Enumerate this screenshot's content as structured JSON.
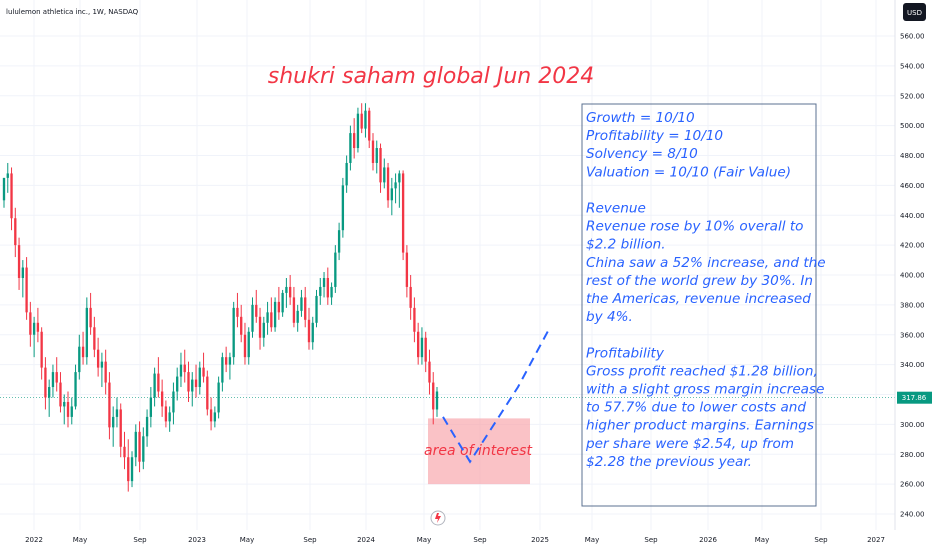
{
  "header": {
    "symbol_line": "lululemon athletica inc., 1W, NASDAQ",
    "currency": "USD"
  },
  "annotations": {
    "title": "shukri saham global Jun 2024",
    "area_label": "area of interest",
    "notes": [
      "Growth = 10/10",
      "Profitability = 10/10",
      "Solvency = 8/10",
      "Valuation = 10/10 (Fair Value)",
      "",
      "Revenue",
      "Revenue rose by 10% overall to",
      "$2.2 billion.",
      "China saw a 52% increase, and the",
      "rest of the world grew by 30%. In",
      "the Americas, revenue increased",
      "by 4%.",
      "",
      "Profitability",
      "Gross profit reached $1.28 billion,",
      "with a slight gross margin increase",
      "to 57.7% due to lower costs and",
      "higher product margins. Earnings",
      "per share were $2.54, up from",
      "$2.28 the previous year."
    ]
  },
  "colors": {
    "up": "#089981",
    "down": "#f23645",
    "note_text": "#2962ff",
    "annotation_red": "#f23645",
    "area_fill": "#f7a1a8",
    "current_price_tag": "#089981",
    "currency_tag": "#131722"
  },
  "chart_data": {
    "type": "candlestick",
    "interval": "1W",
    "y_axis": {
      "ticks": [
        "560.00",
        "540.00",
        "520.00",
        "500.00",
        "480.00",
        "460.00",
        "440.00",
        "420.00",
        "400.00",
        "380.00",
        "360.00",
        "340.00",
        "320.00",
        "300.00",
        "280.00",
        "260.00",
        "240.00"
      ],
      "range": [
        232,
        572
      ]
    },
    "x_axis": {
      "ticks": [
        "2022",
        "May",
        "Sep",
        "2023",
        "May",
        "Sep",
        "2024",
        "May",
        "Sep",
        "2025",
        "May",
        "Sep",
        "2026",
        "May",
        "Sep",
        "2027"
      ]
    },
    "current_price": "317.86",
    "current_price_value": 317.86,
    "area_of_interest": {
      "price_low": 260,
      "price_high": 304
    },
    "projection_path": [
      305,
      275,
      325,
      365
    ],
    "candles": [
      [
        450,
        465,
        445,
        465
      ],
      [
        465,
        475,
        455,
        468
      ],
      [
        468,
        472,
        430,
        438
      ],
      [
        438,
        445,
        412,
        420
      ],
      [
        420,
        425,
        390,
        398
      ],
      [
        398,
        410,
        385,
        405
      ],
      [
        405,
        412,
        370,
        375
      ],
      [
        375,
        382,
        352,
        360
      ],
      [
        360,
        372,
        345,
        368
      ],
      [
        368,
        378,
        355,
        362
      ],
      [
        362,
        365,
        330,
        338
      ],
      [
        338,
        345,
        310,
        318
      ],
      [
        318,
        330,
        305,
        325
      ],
      [
        325,
        340,
        318,
        335
      ],
      [
        335,
        345,
        322,
        328
      ],
      [
        328,
        335,
        308,
        312
      ],
      [
        312,
        320,
        300,
        315
      ],
      [
        315,
        322,
        298,
        305
      ],
      [
        305,
        318,
        300,
        312
      ],
      [
        312,
        340,
        310,
        335
      ],
      [
        335,
        360,
        330,
        352
      ],
      [
        352,
        362,
        340,
        345
      ],
      [
        345,
        385,
        340,
        378
      ],
      [
        378,
        388,
        360,
        365
      ],
      [
        365,
        372,
        345,
        350
      ],
      [
        350,
        358,
        332,
        338
      ],
      [
        338,
        348,
        325,
        342
      ],
      [
        342,
        350,
        320,
        328
      ],
      [
        328,
        335,
        290,
        298
      ],
      [
        298,
        312,
        285,
        305
      ],
      [
        305,
        318,
        298,
        310
      ],
      [
        310,
        314,
        278,
        285
      ],
      [
        285,
        295,
        270,
        278
      ],
      [
        278,
        290,
        255,
        262
      ],
      [
        262,
        282,
        258,
        278
      ],
      [
        278,
        300,
        272,
        295
      ],
      [
        295,
        302,
        268,
        275
      ],
      [
        275,
        298,
        270,
        292
      ],
      [
        292,
        310,
        285,
        305
      ],
      [
        305,
        325,
        298,
        318
      ],
      [
        318,
        338,
        312,
        334
      ],
      [
        334,
        345,
        318,
        322
      ],
      [
        322,
        330,
        305,
        312
      ],
      [
        312,
        316,
        298,
        302
      ],
      [
        302,
        312,
        295,
        308
      ],
      [
        308,
        328,
        300,
        322
      ],
      [
        322,
        338,
        316,
        332
      ],
      [
        332,
        348,
        325,
        340
      ],
      [
        340,
        350,
        328,
        335
      ],
      [
        335,
        342,
        315,
        322
      ],
      [
        322,
        335,
        312,
        330
      ],
      [
        330,
        340,
        318,
        325
      ],
      [
        325,
        342,
        320,
        338
      ],
      [
        338,
        348,
        328,
        332
      ],
      [
        332,
        336,
        306,
        310
      ],
      [
        310,
        318,
        296,
        302
      ],
      [
        302,
        312,
        298,
        308
      ],
      [
        308,
        332,
        304,
        328
      ],
      [
        328,
        348,
        322,
        345
      ],
      [
        345,
        352,
        335,
        340
      ],
      [
        340,
        348,
        330,
        345
      ],
      [
        345,
        382,
        340,
        378
      ],
      [
        378,
        388,
        365,
        372
      ],
      [
        372,
        380,
        355,
        360
      ],
      [
        360,
        368,
        340,
        345
      ],
      [
        345,
        365,
        340,
        362
      ],
      [
        362,
        385,
        358,
        380
      ],
      [
        380,
        390,
        368,
        372
      ],
      [
        372,
        378,
        350,
        358
      ],
      [
        358,
        372,
        352,
        368
      ],
      [
        368,
        382,
        360,
        375
      ],
      [
        375,
        385,
        362,
        365
      ],
      [
        365,
        385,
        362,
        382
      ],
      [
        382,
        392,
        370,
        375
      ],
      [
        375,
        390,
        372,
        388
      ],
      [
        388,
        398,
        378,
        392
      ],
      [
        392,
        400,
        380,
        385
      ],
      [
        385,
        392,
        365,
        368
      ],
      [
        368,
        380,
        362,
        376
      ],
      [
        376,
        390,
        372,
        385
      ],
      [
        385,
        392,
        365,
        370
      ],
      [
        370,
        378,
        350,
        355
      ],
      [
        355,
        372,
        350,
        368
      ],
      [
        368,
        390,
        365,
        386
      ],
      [
        386,
        398,
        380,
        392
      ],
      [
        392,
        402,
        385,
        398
      ],
      [
        398,
        405,
        380,
        385
      ],
      [
        385,
        395,
        380,
        392
      ],
      [
        392,
        420,
        388,
        415
      ],
      [
        415,
        435,
        410,
        430
      ],
      [
        430,
        465,
        425,
        460
      ],
      [
        460,
        480,
        455,
        475
      ],
      [
        475,
        500,
        470,
        495
      ],
      [
        495,
        505,
        478,
        485
      ],
      [
        485,
        512,
        482,
        508
      ],
      [
        508,
        515,
        495,
        498
      ],
      [
        498,
        515,
        492,
        510
      ],
      [
        510,
        512,
        485,
        490
      ],
      [
        490,
        495,
        470,
        475
      ],
      [
        475,
        490,
        468,
        485
      ],
      [
        485,
        488,
        455,
        462
      ],
      [
        462,
        478,
        458,
        472
      ],
      [
        472,
        475,
        445,
        450
      ],
      [
        450,
        465,
        440,
        458
      ],
      [
        458,
        468,
        448,
        462
      ],
      [
        462,
        470,
        445,
        468
      ],
      [
        468,
        470,
        410,
        415
      ],
      [
        415,
        420,
        385,
        392
      ],
      [
        392,
        400,
        370,
        378
      ],
      [
        378,
        385,
        355,
        362
      ],
      [
        362,
        368,
        340,
        345
      ],
      [
        345,
        365,
        340,
        358
      ],
      [
        358,
        362,
        335,
        342
      ],
      [
        342,
        350,
        320,
        328
      ],
      [
        328,
        335,
        300,
        310
      ],
      [
        310,
        325,
        305,
        322
      ]
    ]
  }
}
